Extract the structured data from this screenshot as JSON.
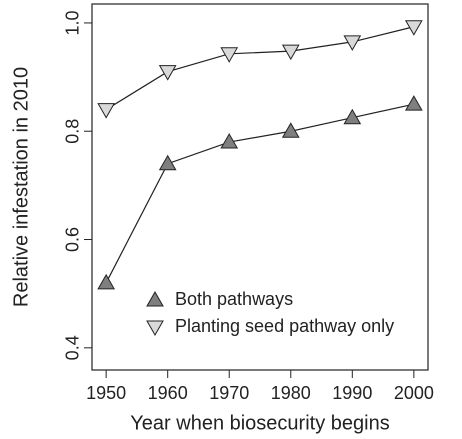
{
  "chart_data": {
    "type": "line",
    "x_label": "Year when biosecurity begins",
    "y_label": "Relative infestation in 2010",
    "x": [
      1950,
      1960,
      1970,
      1980,
      1990,
      2000
    ],
    "series": [
      {
        "name": "Both pathways",
        "color": "#7f7f7f",
        "marker": "triangle-up",
        "values": [
          0.52,
          0.74,
          0.78,
          0.8,
          0.825,
          0.85
        ]
      },
      {
        "name": "Planting seed pathway only",
        "color": "#d9d9d9",
        "marker": "triangle-down",
        "values": [
          0.84,
          0.91,
          0.943,
          0.948,
          0.965,
          0.993
        ]
      }
    ],
    "xlim": [
      1947.7,
      2002.3
    ],
    "ylim": [
      0.359,
      1.035
    ],
    "xticks": [
      1950,
      1960,
      1970,
      1980,
      1990,
      2000
    ],
    "yticks": [
      0.4,
      0.6,
      0.8,
      {
        "value": 1,
        "label": "1.0"
      }
    ],
    "legend": "lower center"
  }
}
